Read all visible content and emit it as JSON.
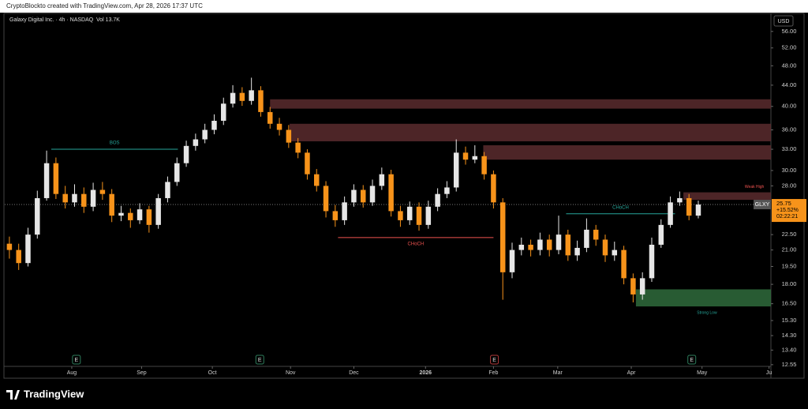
{
  "header": {
    "credit": "CryptoBlockto created with TradingView.com, Apr 28, 2026 17:37 UTC",
    "brand": "TradingView"
  },
  "chart_data": {
    "type": "candlestick",
    "title": "Galaxy Digital Inc. · 4h · NASDAQ",
    "volume": "Vol 13.7K",
    "currency": "USD",
    "log_scale": true,
    "up_color": "#e6e6e6",
    "down_color": "#f7931a",
    "open": [
      21.6,
      21,
      19.8,
      22.5,
      26.5,
      31,
      27,
      26,
      27,
      25.5,
      27.5,
      27,
      24.5,
      24.8,
      24,
      25.2,
      23.5,
      26.5,
      28.5,
      31,
      33.5,
      34.5,
      36,
      37.5,
      40.5,
      42.5,
      41,
      43,
      39,
      37,
      36,
      34,
      32.5,
      29.5,
      28,
      25,
      24,
      26,
      27.5,
      26,
      28,
      29.5,
      25,
      24,
      25.5,
      23.5,
      25.5,
      27,
      27.8,
      32.5,
      31.5,
      32,
      29.5,
      26,
      19,
      21,
      21.5,
      21,
      22,
      21,
      22.5,
      20.5,
      21.2,
      23,
      22,
      20.5,
      21,
      18.5,
      17.2,
      18.5,
      21.5,
      23.5,
      26,
      26.5,
      24.5
    ],
    "high": [
      22.3,
      21.6,
      23.2,
      27.4,
      32.8,
      31.8,
      28,
      28.2,
      27.8,
      28.4,
      28.5,
      27.6,
      25.6,
      25.3,
      25.9,
      25.6,
      27,
      29.2,
      31.8,
      34.3,
      35.4,
      37,
      38.6,
      41.6,
      44,
      43.6,
      45.5,
      43.8,
      39.9,
      38,
      36.8,
      34.7,
      33,
      30.2,
      28.6,
      25.7,
      26.7,
      28.2,
      28.1,
      28.8,
      30.4,
      30.1,
      25.6,
      26.1,
      26,
      26.2,
      27.7,
      28.6,
      34.5,
      33.4,
      33.6,
      32.6,
      30,
      26.5,
      21.7,
      22.2,
      22,
      22.7,
      22.5,
      24.5,
      23,
      21.9,
      24.2,
      23.5,
      22.5,
      21.8,
      21.4,
      18.9,
      19,
      22.2,
      24.1,
      26.7,
      27.3,
      27,
      26.2
    ],
    "low": [
      20.2,
      19.2,
      19.5,
      22.1,
      26.2,
      26.4,
      25.3,
      25.5,
      24.8,
      25,
      26.3,
      23.8,
      23.9,
      23.2,
      23.6,
      22.7,
      23.1,
      26,
      28,
      30.5,
      32.8,
      33.9,
      35.3,
      36.8,
      39.8,
      40.1,
      40.3,
      38.2,
      36.2,
      35.1,
      33.2,
      31.7,
      28.8,
      27.3,
      24.3,
      23.3,
      23.5,
      25.5,
      25.4,
      25.6,
      27.5,
      24.4,
      23.3,
      23.5,
      22.9,
      23.1,
      25,
      26.5,
      27.3,
      30.8,
      31,
      28.8,
      25.3,
      16.8,
      18.5,
      20.5,
      20.4,
      20.5,
      20.4,
      20.6,
      20,
      20,
      20.8,
      21.4,
      19.9,
      20,
      18,
      16.6,
      16.8,
      18.2,
      21.2,
      23.2,
      25.6,
      24,
      24.2
    ],
    "close": [
      21,
      19.8,
      22.5,
      26.5,
      31,
      27,
      26,
      27,
      25.5,
      27.5,
      27,
      24.5,
      24.8,
      24,
      25.2,
      23.5,
      26.5,
      28.5,
      31,
      33.5,
      34.5,
      36,
      37.5,
      40.5,
      42.5,
      41,
      43,
      39,
      37,
      36,
      34,
      32.5,
      29.5,
      28,
      25,
      24,
      26,
      27.5,
      26,
      28,
      29.5,
      25,
      24,
      25.5,
      23.5,
      25.5,
      27,
      27.8,
      32.5,
      31.5,
      32,
      29.5,
      26,
      19,
      21,
      21.5,
      21,
      22,
      21,
      22.5,
      20.5,
      21.2,
      23,
      22,
      20.5,
      21,
      18.5,
      17.2,
      18.5,
      21.5,
      23.5,
      26,
      26.5,
      24.5,
      25.75
    ],
    "xlim": [
      -0.5,
      81.8
    ],
    "xticks": [
      {
        "value": 6.7,
        "label": "Aug"
      },
      {
        "value": 14.2,
        "label": "Sep"
      },
      {
        "value": 21.8,
        "label": "Oct"
      },
      {
        "value": 30.2,
        "label": "Nov"
      },
      {
        "value": 37.0,
        "label": "Dec"
      },
      {
        "value": 44.7,
        "label": "2026"
      },
      {
        "value": 52.0,
        "label": "Feb"
      },
      {
        "value": 58.9,
        "label": "Mar"
      },
      {
        "value": 66.8,
        "label": "Apr"
      },
      {
        "value": 74.4,
        "label": "May"
      },
      {
        "value": 81.6,
        "label": "Ju"
      }
    ],
    "ylim": [
      12.5,
      60.5
    ],
    "yticks": [
      {
        "value": 56,
        "label": "56.00"
      },
      {
        "value": 52,
        "label": "52.00"
      },
      {
        "value": 48,
        "label": "48.00"
      },
      {
        "value": 44,
        "label": "44.00"
      },
      {
        "value": 40,
        "label": "40.00"
      },
      {
        "value": 36,
        "label": "36.00"
      },
      {
        "value": 33,
        "label": "33.00"
      },
      {
        "value": 30,
        "label": "30.00"
      },
      {
        "value": 28,
        "label": "28.00"
      },
      {
        "value": 22.5,
        "label": "22.50"
      },
      {
        "value": 21,
        "label": "21.00"
      },
      {
        "value": 19.5,
        "label": "19.50"
      },
      {
        "value": 18,
        "label": "18.00"
      },
      {
        "value": 16.5,
        "label": "16.50"
      },
      {
        "value": 15.3,
        "label": "15.30"
      },
      {
        "value": 14.3,
        "label": "14.30"
      },
      {
        "value": 13.4,
        "label": "13.40"
      },
      {
        "value": 12.55,
        "label": "12.55"
      }
    ],
    "zones": [
      {
        "x0": 28.0,
        "x1": 81.8,
        "low": 39.6,
        "high": 41.3,
        "color": "#5a2b2e"
      },
      {
        "x0": 30.1,
        "x1": 81.8,
        "low": 34.2,
        "high": 37,
        "color": "#5a2b2e"
      },
      {
        "x0": 50.9,
        "x1": 81.8,
        "low": 31.5,
        "high": 33.6,
        "color": "#5a2b2e"
      },
      {
        "x0": 72.4,
        "x1": 81.8,
        "low": 26.3,
        "high": 27.2,
        "color": "#5a2b2e",
        "label": "Weak High"
      },
      {
        "x0": 67.3,
        "x1": 81.8,
        "low": 16.3,
        "high": 17.6,
        "color": "#2f6b3c",
        "label": "Strong Low"
      }
    ],
    "structures": [
      {
        "label": "BOS",
        "price": 33,
        "x0": 4.5,
        "x1": 18.1,
        "color": "#26a69a"
      },
      {
        "label": "CHoCH",
        "price": 22.2,
        "x0": 35.3,
        "x1": 52.0,
        "color": "#ef5350"
      },
      {
        "label": "CHoCH",
        "price": 24.7,
        "x0": 59.8,
        "x1": 71.5,
        "color": "#26a69a"
      }
    ],
    "events": [
      {
        "label": "E",
        "x": 7.2,
        "color": "#2e7d5b"
      },
      {
        "label": "E",
        "x": 26.9,
        "color": "#2e7d5b"
      },
      {
        "label": "E",
        "x": 52.1,
        "color": "#b23a3a"
      },
      {
        "label": "E",
        "x": 73.3,
        "color": "#2e7d5b"
      }
    ],
    "symbol": "GLXY",
    "price": 25.75,
    "change": "+15.52%",
    "countdown": "02:22:21"
  }
}
